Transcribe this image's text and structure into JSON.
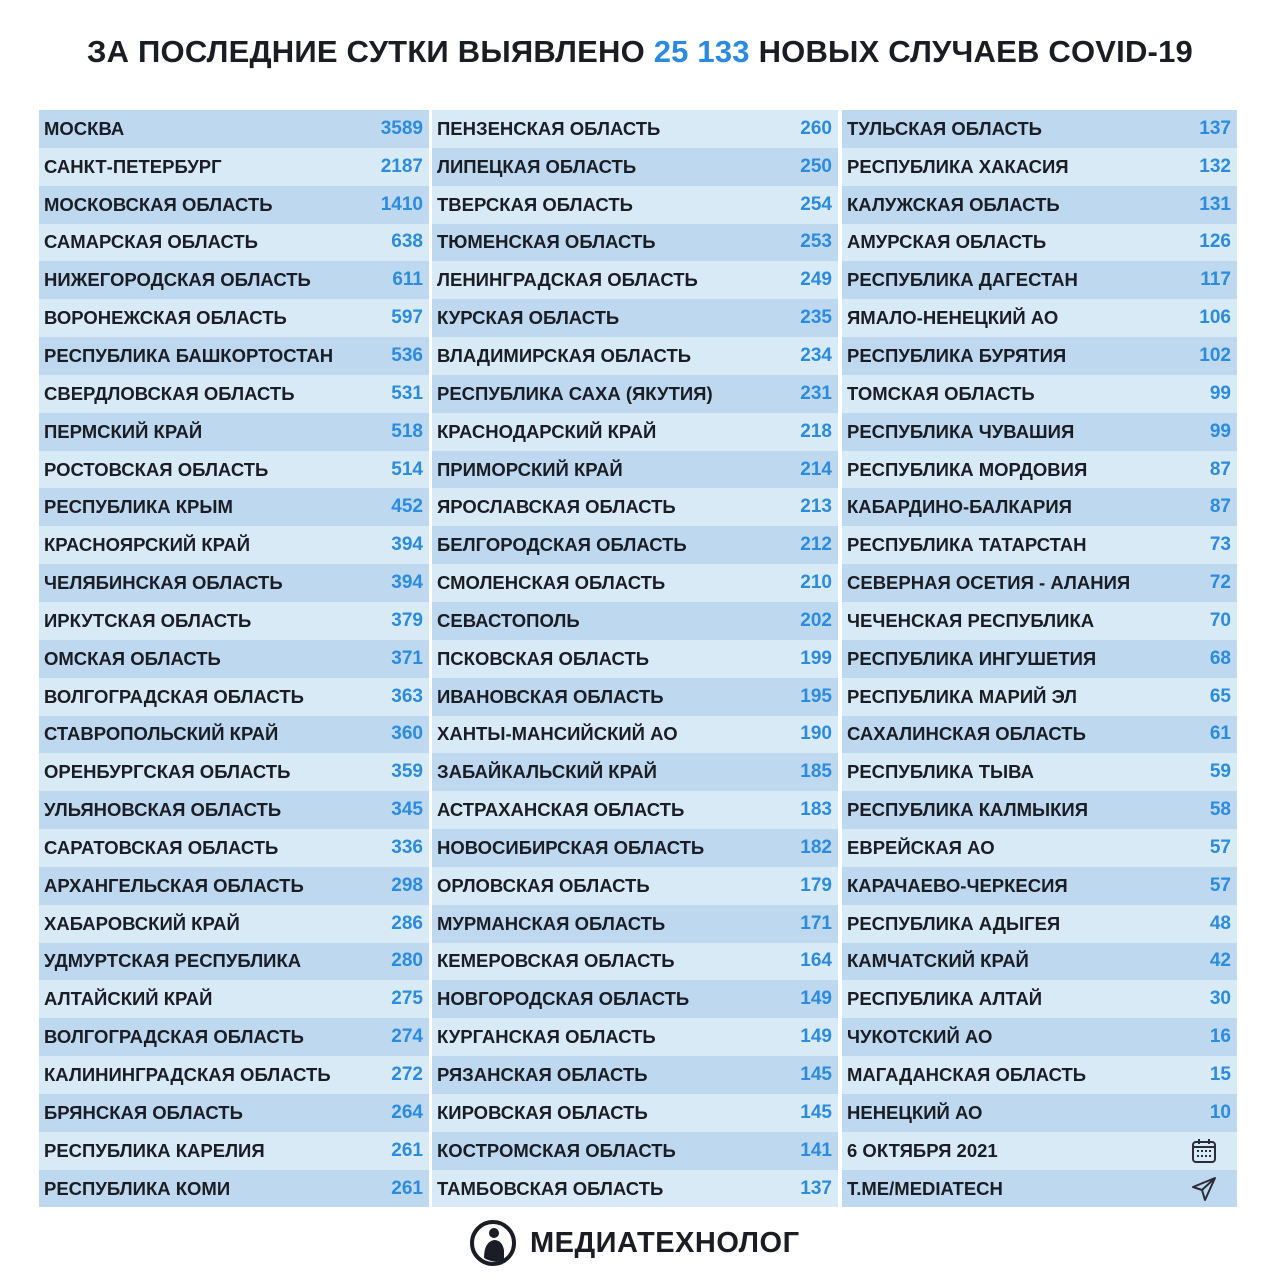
{
  "title": {
    "prefix": "ЗА ПОСЛЕДНИЕ СУТКИ ВЫЯВЛЕНО ",
    "highlight": "25 133",
    "suffix": " НОВЫХ СЛУЧАЕВ COVID-19"
  },
  "colors": {
    "accent": "#2a8be0",
    "row_dark": "#bdd8ef",
    "row_light": "#d9eaf7"
  },
  "columns": [
    [
      [
        "Москва",
        "3589"
      ],
      [
        "Санкт-Петербург",
        "2187"
      ],
      [
        "Московская область",
        "1410"
      ],
      [
        "Самарская область",
        "638"
      ],
      [
        "Нижегородская область",
        "611"
      ],
      [
        "Воронежская область",
        "597"
      ],
      [
        "Республика Башкортостан",
        "536"
      ],
      [
        "Свердловская область",
        "531"
      ],
      [
        "Пермский край",
        "518"
      ],
      [
        "Ростовская область",
        "514"
      ],
      [
        "Республика Крым",
        "452"
      ],
      [
        "Красноярский край",
        "394"
      ],
      [
        "Челябинская область",
        "394"
      ],
      [
        "Иркутская область",
        "379"
      ],
      [
        "Омская область",
        "371"
      ],
      [
        "Волгоградская область",
        "363"
      ],
      [
        "Ставропольский край",
        "360"
      ],
      [
        "Оренбургская область",
        "359"
      ],
      [
        "Ульяновская область",
        "345"
      ],
      [
        "Саратовская область",
        "336"
      ],
      [
        "Архангельская область",
        "298"
      ],
      [
        "Хабаровский край",
        "286"
      ],
      [
        "Удмуртская Республика",
        "280"
      ],
      [
        "Алтайский край",
        "275"
      ],
      [
        "Волгоградская область",
        "274"
      ],
      [
        "Калининградская область",
        "272"
      ],
      [
        "Брянская область",
        "264"
      ],
      [
        "Республика Карелия",
        "261"
      ],
      [
        "Республика Коми",
        "261"
      ]
    ],
    [
      [
        "Пензенская область",
        "260"
      ],
      [
        "Липецкая область",
        "250"
      ],
      [
        "Тверская область",
        "254"
      ],
      [
        "Тюменская область",
        "253"
      ],
      [
        "Ленинградская область",
        "249"
      ],
      [
        "Курская область",
        "235"
      ],
      [
        "Владимирская область",
        "234"
      ],
      [
        "Республика Саха (Якутия)",
        "231"
      ],
      [
        "Краснодарский край",
        "218"
      ],
      [
        "Приморский край",
        "214"
      ],
      [
        "Ярославская область",
        "213"
      ],
      [
        "Белгородская область",
        "212"
      ],
      [
        "Смоленская область",
        "210"
      ],
      [
        "Севастополь",
        "202"
      ],
      [
        "Псковская область",
        "199"
      ],
      [
        "Ивановская область",
        "195"
      ],
      [
        "Ханты-Мансийский АО",
        "190"
      ],
      [
        "Забайкальский край",
        "185"
      ],
      [
        "Астраханская область",
        "183"
      ],
      [
        "Новосибирская область",
        "182"
      ],
      [
        "Орловская область",
        "179"
      ],
      [
        "Мурманская область",
        "171"
      ],
      [
        "Кемеровская область",
        "164"
      ],
      [
        "Новгородская область",
        "149"
      ],
      [
        "Курганская область",
        "149"
      ],
      [
        "Рязанская область",
        "145"
      ],
      [
        "Кировская область",
        "145"
      ],
      [
        "Костромская область",
        "141"
      ],
      [
        "Тамбовская область",
        "137"
      ]
    ],
    [
      [
        "Тульская область",
        "137"
      ],
      [
        "Республика Хакасия",
        "132"
      ],
      [
        "Калужская область",
        "131"
      ],
      [
        "Амурская область",
        "126"
      ],
      [
        "Республика Дагестан",
        "117"
      ],
      [
        "Ямало-Ненецкий АО",
        "106"
      ],
      [
        "Республика Бурятия",
        "102"
      ],
      [
        "Томская область",
        "99"
      ],
      [
        "Республика Чувашия",
        "99"
      ],
      [
        "Республика Мордовия",
        "87"
      ],
      [
        "Кабардино-Балкария",
        "87"
      ],
      [
        "Республика Татарстан",
        "73"
      ],
      [
        "Северная Осетия - Алания",
        "72"
      ],
      [
        "Чеченская Республика",
        "70"
      ],
      [
        "Республика Ингушетия",
        "68"
      ],
      [
        "Республика Марий Эл",
        "65"
      ],
      [
        "Сахалинская область",
        "61"
      ],
      [
        "Республика Тыва",
        "59"
      ],
      [
        "Республика Калмыкия",
        "58"
      ],
      [
        "Еврейская АО",
        "57"
      ],
      [
        "Карачаево-Черкесия",
        "57"
      ],
      [
        "Республика Адыгея",
        "48"
      ],
      [
        "Камчатский край",
        "42"
      ],
      [
        "Республика Алтай",
        "30"
      ],
      [
        "Чукотский АО",
        "16"
      ],
      [
        "Магаданская область",
        "15"
      ],
      [
        "Ненецкий АО",
        "10"
      ]
    ]
  ],
  "footer": {
    "date": "6 октября 2021",
    "date_icon": "calendar-icon",
    "link": "t.me/mediatech",
    "link_icon": "telegram-send-icon"
  },
  "logo": {
    "name": "МЕДИАТЕХНОЛОГ"
  }
}
